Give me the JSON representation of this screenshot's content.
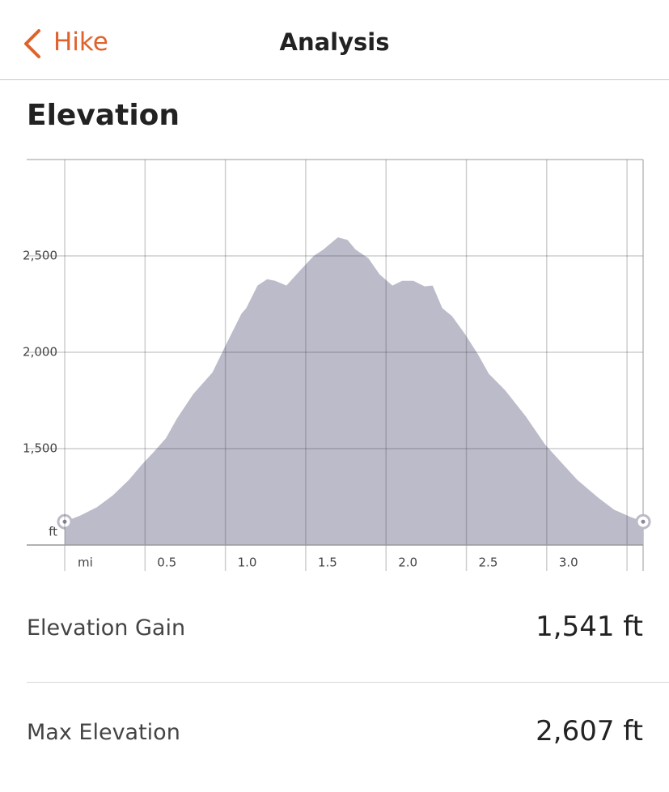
{
  "header": {
    "back": "Hike",
    "title": "Analysis"
  },
  "chart_data": {
    "type": "area",
    "title": "Elevation",
    "x_label": "mi",
    "y_label": "ft",
    "color": "#bbbbc9",
    "x": [
      0,
      0.1,
      0.2,
      0.3,
      0.4,
      0.48,
      0.55,
      0.63,
      0.7,
      0.8,
      0.92,
      1.0,
      1.1,
      1.13,
      1.2,
      1.26,
      1.31,
      1.38,
      1.47,
      1.55,
      1.61,
      1.7,
      1.76,
      1.81,
      1.89,
      1.96,
      2.04,
      2.1,
      2.17,
      2.24,
      2.29,
      2.35,
      2.41,
      2.49,
      2.57,
      2.64,
      2.74,
      2.87,
      2.99,
      3.09,
      3.19,
      3.32,
      3.42,
      3.52,
      3.6
    ],
    "values": [
      1121,
      1154,
      1196,
      1258,
      1338,
      1417,
      1479,
      1554,
      1658,
      1783,
      1896,
      2033,
      2200,
      2229,
      2346,
      2379,
      2371,
      2346,
      2429,
      2500,
      2533,
      2596,
      2583,
      2533,
      2488,
      2404,
      2346,
      2371,
      2371,
      2342,
      2346,
      2229,
      2188,
      2096,
      1992,
      1888,
      1804,
      1667,
      1521,
      1429,
      1338,
      1246,
      1183,
      1146,
      1121
    ],
    "xlim": [
      0,
      3.6
    ],
    "ylim": [
      1000,
      3000
    ],
    "xticks": [
      {
        "value": 0,
        "label": null
      },
      0.5,
      {
        "value": 1,
        "label": "1.0"
      },
      1.5,
      {
        "value": 2,
        "label": "2.0"
      },
      2.5,
      {
        "value": 3,
        "label": "3.0"
      },
      {
        "value": 3.5,
        "label": null
      }
    ],
    "yticks": [
      {
        "value": 1500,
        "label": "1,500"
      },
      {
        "value": 2000,
        "label": "2,000"
      },
      {
        "value": 2500,
        "label": "2,500"
      }
    ],
    "grid": true
  },
  "stats": [
    {
      "label": "Elevation Gain",
      "value": "1,541 ft"
    },
    {
      "label": "Max Elevation",
      "value": "2,607 ft"
    }
  ]
}
